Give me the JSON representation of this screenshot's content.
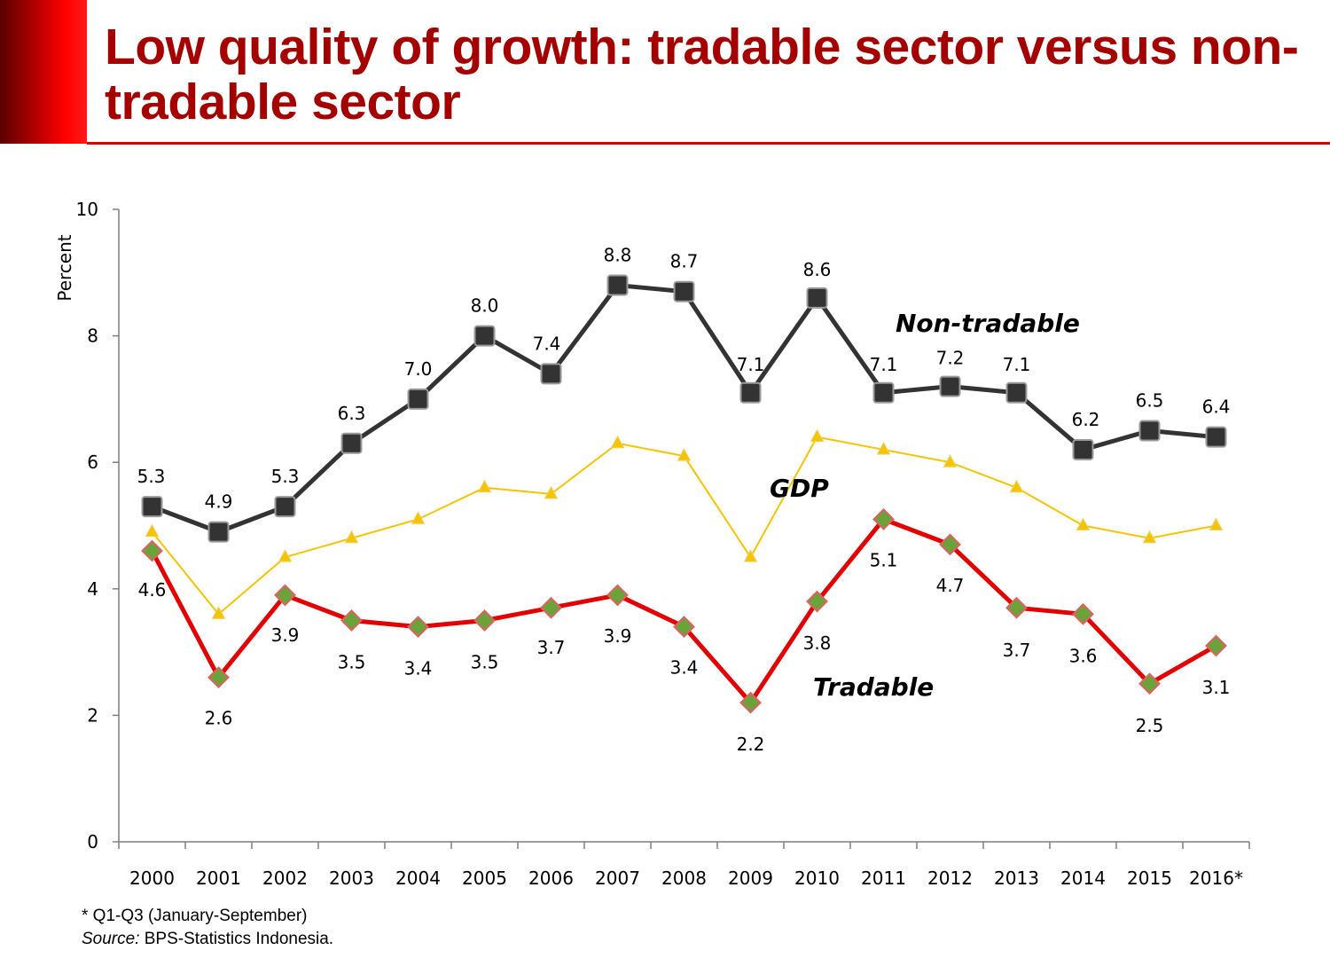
{
  "slide": {
    "title": "Low quality of growth: tradable sector versus non-tradable sector"
  },
  "colors": {
    "title": "#a50000",
    "non_tradable": "#333333",
    "gdp": "#f5c400",
    "tradable": "#e30000",
    "tradable_marker": "#6aa33a"
  },
  "chart_data": {
    "type": "line",
    "ylabel": "Percent",
    "xlabel": "",
    "ylim": [
      0,
      10
    ],
    "yticks": [
      0,
      2,
      4,
      6,
      8,
      10
    ],
    "categories": [
      "2000",
      "2001",
      "2002",
      "2003",
      "2004",
      "2005",
      "2006",
      "2007",
      "2008",
      "2009",
      "2010",
      "2011",
      "2012",
      "2013",
      "2014",
      "2015",
      "2016*"
    ],
    "grid": false,
    "series": [
      {
        "name": "Non-tradable",
        "label": "Non-tradable",
        "values": [
          5.3,
          4.9,
          5.3,
          6.3,
          7.0,
          8.0,
          7.4,
          8.8,
          8.7,
          7.1,
          8.6,
          7.1,
          7.2,
          7.1,
          6.2,
          6.5,
          6.4
        ],
        "data_labels": [
          "5.3",
          "4.9",
          "5.3",
          "6.3",
          "7.0",
          "8.0",
          "7.4",
          "8.8",
          "8.7",
          "7.1",
          "8.6",
          "7.1",
          "7.2",
          "7.1",
          "6.2",
          "6.5",
          "6.4"
        ]
      },
      {
        "name": "GDP",
        "label": "GDP",
        "values": [
          4.9,
          3.6,
          4.5,
          4.8,
          5.1,
          5.6,
          5.5,
          6.3,
          6.1,
          4.5,
          6.4,
          6.2,
          6.0,
          5.6,
          5.0,
          4.8,
          5.0
        ],
        "data_labels": []
      },
      {
        "name": "Tradable",
        "label": "Tradable",
        "values": [
          4.6,
          2.6,
          3.9,
          3.5,
          3.4,
          3.5,
          3.7,
          3.9,
          3.4,
          2.2,
          3.8,
          5.1,
          4.7,
          3.7,
          3.6,
          2.5,
          3.1
        ],
        "data_labels": [
          "4.6",
          "2.6",
          "3.9",
          "3.5",
          "3.4",
          "3.5",
          "3.7",
          "3.9",
          "3.4",
          "2.2",
          "3.8",
          "5.1",
          "4.7",
          "3.7",
          "3.6",
          "2.5",
          "3.1"
        ]
      }
    ]
  },
  "footnote": {
    "note": "* Q1-Q3 (January-September)",
    "source_prefix": "Source:",
    "source_text": " BPS-Statistics Indonesia."
  }
}
